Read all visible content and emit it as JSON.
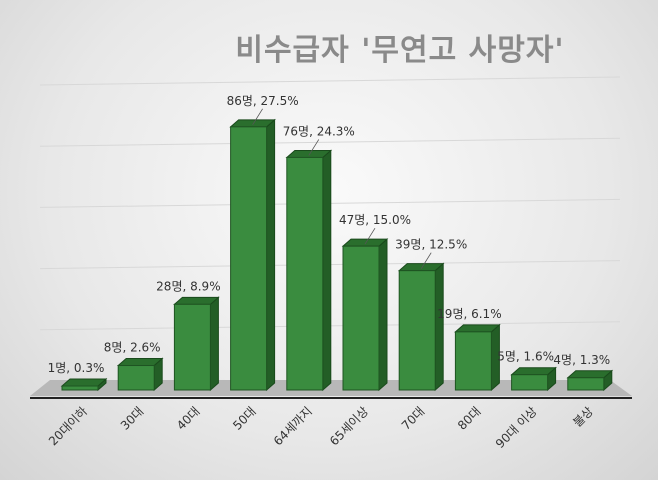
{
  "chart_data": {
    "type": "bar",
    "title": "비수급자 '무연고 사망자'",
    "categories": [
      "20대이하",
      "30대",
      "40대",
      "50대",
      "64세까지",
      "65세이상",
      "70대",
      "80대",
      "90대 이상",
      "불상"
    ],
    "values": [
      1,
      8,
      28,
      86,
      76,
      47,
      39,
      19,
      5,
      4
    ],
    "percents": [
      0.3,
      2.6,
      8.9,
      27.5,
      24.3,
      15.0,
      12.5,
      6.1,
      1.6,
      1.3
    ],
    "data_labels": [
      "1명, 0.3%",
      "8명, 2.6%",
      "28명, 8.9%",
      "86명, 27.5%",
      "76명, 24.3%",
      "47명, 15.0%",
      "39명, 12.5%",
      "19명, 6.1%",
      "5명, 1.6%",
      "4명, 1.3%"
    ],
    "xlabel": "",
    "ylabel": "",
    "ylim": [
      0,
      100
    ],
    "grid": true,
    "legend": "none",
    "bar_color": "#3a8c3f",
    "style": "3d-column"
  }
}
